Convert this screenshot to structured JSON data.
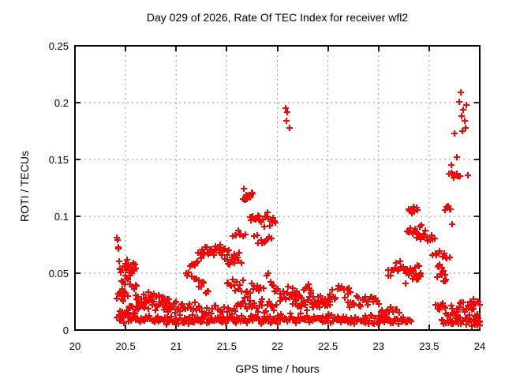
{
  "window": {
    "background": "#ffffff"
  },
  "chart_data": {
    "type": "scatter",
    "title": "Day 029 of 2026, Rate Of TEC Index for receiver wfl2",
    "xlabel": "GPS time / hours",
    "ylabel": "ROTI / TECUs",
    "xlim": [
      20,
      24
    ],
    "ylim": [
      0,
      0.25
    ],
    "xticks": [
      20,
      20.5,
      21,
      21.5,
      22,
      22.5,
      23,
      23.5,
      24
    ],
    "xtick_labels": [
      "20",
      "20.5",
      "21",
      "21.5",
      "22",
      "22.5",
      "23",
      "23.5",
      "24"
    ],
    "yticks": [
      0,
      0.05,
      0.1,
      0.15,
      0.2,
      0.25
    ],
    "ytick_labels": [
      "0",
      "0.05",
      "0.1",
      "0.15",
      "0.2",
      "0.25"
    ],
    "grid": true,
    "legend": "none",
    "marker": "plus",
    "colors": {
      "marker": "#ff0000",
      "grid": "#909090",
      "axis": "#000000",
      "background": "#ffffff"
    },
    "seed": 20260129,
    "series": [
      {
        "name": "ROTI",
        "color": "#ff0000",
        "segments_format": [
          "x_start_hours",
          "x_end_hours",
          "n_points",
          "y_start_tecu",
          "y_end_tecu",
          "y_jitter_tecu"
        ],
        "segments": [
          [
            20.415,
            20.465,
            10,
            0.078,
            0.048,
            0.01
          ],
          [
            20.46,
            20.52,
            8,
            0.032,
            0.046,
            0.008
          ],
          [
            20.49,
            20.6,
            20,
            0.057,
            0.056,
            0.012
          ],
          [
            20.42,
            20.52,
            8,
            0.03,
            0.032,
            0.007
          ],
          [
            20.55,
            20.63,
            6,
            0.043,
            0.034,
            0.007
          ],
          [
            20.42,
            20.7,
            26,
            0.014,
            0.023,
            0.006
          ],
          [
            20.6,
            21.08,
            44,
            0.027,
            0.019,
            0.007
          ],
          [
            20.45,
            21.1,
            60,
            0.01,
            0.009,
            0.0045
          ],
          [
            20.7,
            20.93,
            14,
            0.031,
            0.028,
            0.005
          ],
          [
            21.1,
            21.26,
            14,
            0.052,
            0.067,
            0.006
          ],
          [
            21.25,
            21.48,
            24,
            0.069,
            0.07,
            0.006
          ],
          [
            21.44,
            21.57,
            10,
            0.073,
            0.059,
            0.009
          ],
          [
            21.16,
            21.32,
            12,
            0.048,
            0.033,
            0.007
          ],
          [
            21.08,
            21.6,
            48,
            0.0095,
            0.0085,
            0.0045
          ],
          [
            21.1,
            21.6,
            30,
            0.019,
            0.017,
            0.006
          ],
          [
            21.5,
            21.64,
            12,
            0.062,
            0.064,
            0.009
          ],
          [
            21.56,
            21.68,
            8,
            0.084,
            0.084,
            0.006
          ],
          [
            21.66,
            21.76,
            14,
            0.12,
            0.12,
            0.008
          ],
          [
            21.73,
            21.84,
            12,
            0.098,
            0.098,
            0.0045
          ],
          [
            21.86,
            21.98,
            12,
            0.097,
            0.096,
            0.011
          ],
          [
            21.78,
            21.94,
            10,
            0.079,
            0.079,
            0.007
          ],
          [
            21.5,
            21.86,
            26,
            0.038,
            0.036,
            0.01
          ],
          [
            21.6,
            22.0,
            36,
            0.01,
            0.009,
            0.005
          ],
          [
            21.62,
            21.98,
            24,
            0.022,
            0.02,
            0.007
          ],
          [
            21.9,
            22.0,
            8,
            0.047,
            0.033,
            0.008
          ],
          [
            22.02,
            22.33,
            26,
            0.03,
            0.036,
            0.008
          ],
          [
            22.0,
            22.5,
            44,
            0.01,
            0.01,
            0.005
          ],
          [
            22.15,
            22.5,
            26,
            0.022,
            0.024,
            0.007
          ],
          [
            22.5,
            23.05,
            48,
            0.01,
            0.009,
            0.005
          ],
          [
            22.5,
            22.72,
            18,
            0.03,
            0.036,
            0.009
          ],
          [
            22.7,
            23.0,
            24,
            0.021,
            0.028,
            0.008
          ],
          [
            22.33,
            22.52,
            14,
            0.028,
            0.022,
            0.007
          ],
          [
            23.09,
            23.25,
            14,
            0.052,
            0.056,
            0.007
          ],
          [
            23.26,
            23.42,
            22,
            0.047,
            0.05,
            0.009
          ],
          [
            23.28,
            23.46,
            12,
            0.088,
            0.088,
            0.008
          ],
          [
            23.3,
            23.38,
            9,
            0.105,
            0.105,
            0.005
          ],
          [
            23.38,
            23.55,
            12,
            0.083,
            0.08,
            0.006
          ],
          [
            23.54,
            23.7,
            10,
            0.067,
            0.067,
            0.0045
          ],
          [
            23.58,
            23.67,
            12,
            0.05,
            0.049,
            0.009
          ],
          [
            23.66,
            23.71,
            5,
            0.108,
            0.108,
            0.003
          ],
          [
            23.7,
            23.81,
            9,
            0.1355,
            0.1355,
            0.0035
          ],
          [
            23.0,
            23.32,
            28,
            0.009,
            0.008,
            0.0045
          ],
          [
            23.02,
            23.2,
            12,
            0.017,
            0.015,
            0.005
          ],
          [
            23.57,
            23.8,
            20,
            0.023,
            0.012,
            0.007
          ],
          [
            23.78,
            23.92,
            12,
            0.019,
            0.024,
            0.006
          ],
          [
            23.9,
            24.0,
            10,
            0.018,
            0.008,
            0.007
          ],
          [
            23.62,
            24.0,
            30,
            0.008,
            0.007,
            0.004
          ],
          [
            23.94,
            24.0,
            5,
            0.026,
            0.022,
            0.004
          ]
        ],
        "points": [
          [
            22.08,
            0.195
          ],
          [
            22.1,
            0.192
          ],
          [
            22.09,
            0.184
          ],
          [
            22.12,
            0.178
          ],
          [
            23.75,
            0.173
          ],
          [
            23.81,
            0.209
          ],
          [
            23.8,
            0.201
          ],
          [
            23.87,
            0.198
          ],
          [
            23.84,
            0.194
          ],
          [
            23.82,
            0.188
          ],
          [
            23.85,
            0.184
          ],
          [
            23.86,
            0.178
          ],
          [
            23.83,
            0.175
          ],
          [
            23.77,
            0.152
          ],
          [
            23.72,
            0.145
          ],
          [
            23.88,
            0.136
          ],
          [
            23.73,
            0.093
          ]
        ]
      }
    ]
  }
}
